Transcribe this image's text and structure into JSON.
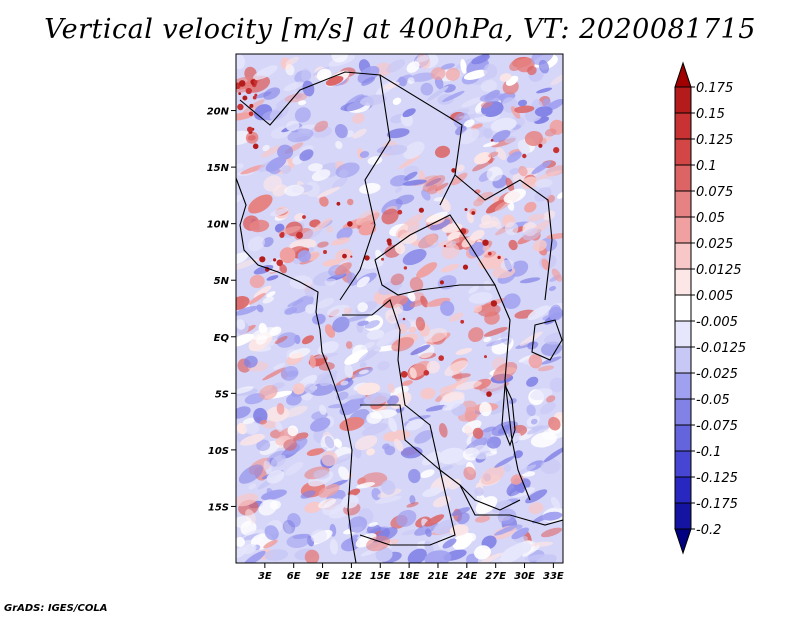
{
  "title": "Vertical velocity [m/s] at 400hPa, VT: 2020081715",
  "credit": "GrADS: IGES/COLA",
  "map": {
    "lon_range": [
      0,
      34
    ],
    "lat_range": [
      -20,
      25
    ],
    "lat_ticks": [
      "20N",
      "15N",
      "10N",
      "5N",
      "EQ",
      "5S",
      "10S",
      "15S"
    ],
    "lon_ticks": [
      "3E",
      "6E",
      "9E",
      "12E",
      "15E",
      "18E",
      "21E",
      "24E",
      "27E",
      "30E",
      "33E"
    ]
  },
  "colorbar": {
    "labels": [
      "0.175",
      "0.15",
      "0.125",
      "0.1",
      "0.075",
      "0.05",
      "0.025",
      "0.0125",
      "0.005",
      "-0.005",
      "-0.0125",
      "-0.025",
      "-0.05",
      "-0.075",
      "-0.1",
      "-0.125",
      "-0.175",
      "-0.2"
    ],
    "colors": [
      "#a00000",
      "#b41c1c",
      "#c83232",
      "#d24646",
      "#dc6464",
      "#e68282",
      "#f0a0a0",
      "#f8c8c8",
      "#fce6e6",
      "#ffffff",
      "#e6e6fc",
      "#c8c8f6",
      "#a0a0f0",
      "#8282e6",
      "#6464dc",
      "#4646d2",
      "#2828c0",
      "#1414a0",
      "#000080"
    ]
  }
}
